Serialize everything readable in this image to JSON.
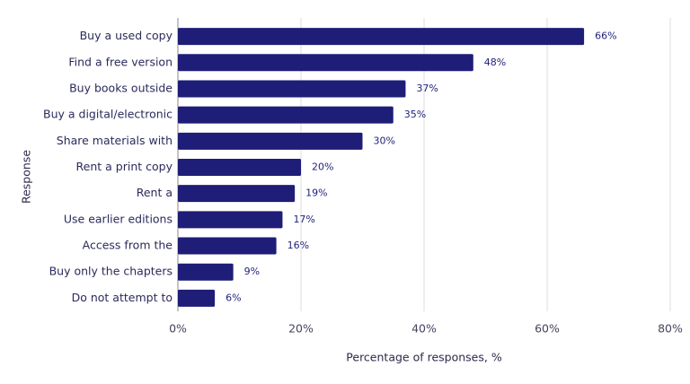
{
  "chart_data": {
    "type": "hbar",
    "x_label": "Percentage of responses, %",
    "y_label": "Response",
    "categories": [
      "Buy a used copy",
      "Find a free version",
      "Buy books outside",
      "Buy a digital/electronic",
      "Share materials with",
      "Rent a print copy",
      "Rent a",
      "Use earlier editions",
      "Access from the",
      "Buy only the chapters",
      "Do not attempt to"
    ],
    "values": [
      66,
      48,
      37,
      35,
      30,
      20,
      19,
      17,
      16,
      9,
      6
    ],
    "value_labels": [
      "66%",
      "48%",
      "37%",
      "35%",
      "30%",
      "20%",
      "19%",
      "17%",
      "16%",
      "9%",
      "6%"
    ],
    "color": "#1e1e78",
    "xlim": [
      0,
      80
    ],
    "xticks": [
      {
        "value": 0,
        "label": "0%"
      },
      {
        "value": 20,
        "label": "20%"
      },
      {
        "value": 40,
        "label": "40%"
      },
      {
        "value": 60,
        "label": "60%"
      },
      {
        "value": 80,
        "label": "80%"
      }
    ],
    "grid": true
  }
}
